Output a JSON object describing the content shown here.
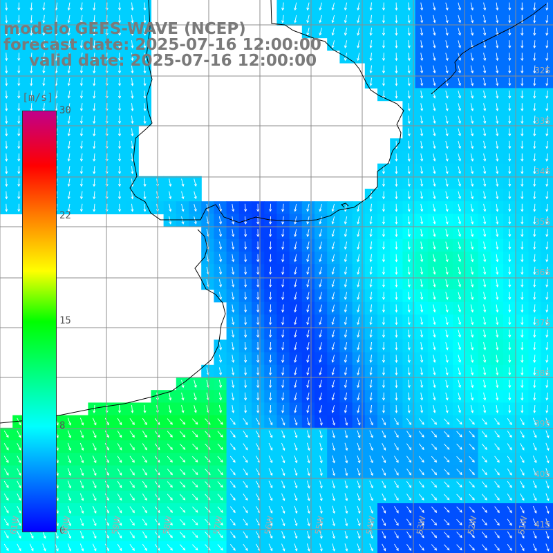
{
  "title": {
    "line1": "modelo GEFS-WAVE (NCEP)",
    "line2": "forecast date: 2025-07-16 12:00:00",
    "line3": "valid date: 2025-07-16 12:00:00"
  },
  "colorbar": {
    "unit": "[m/s]",
    "ticks": [
      "30",
      "22",
      "15",
      "8",
      "0"
    ],
    "colors": [
      "#0000ff",
      "#00ffff",
      "#00ff00",
      "#ffff00",
      "#ff7f00",
      "#ff0000",
      "#c0008a"
    ]
  },
  "lat_labels": [
    "32S",
    "33S",
    "34S",
    "35S",
    "36S",
    "37S",
    "38S",
    "39S",
    "40S",
    "41S"
  ],
  "lon_labels": [
    "61W",
    "60W",
    "59W",
    "58W",
    "57W",
    "56W",
    "55W",
    "54W",
    "53W",
    "52W",
    "51W"
  ],
  "colors": {
    "land": "#ffffff",
    "coast": "#000000",
    "grid": "#8c8c8c",
    "arrows": "#ffffff"
  }
}
